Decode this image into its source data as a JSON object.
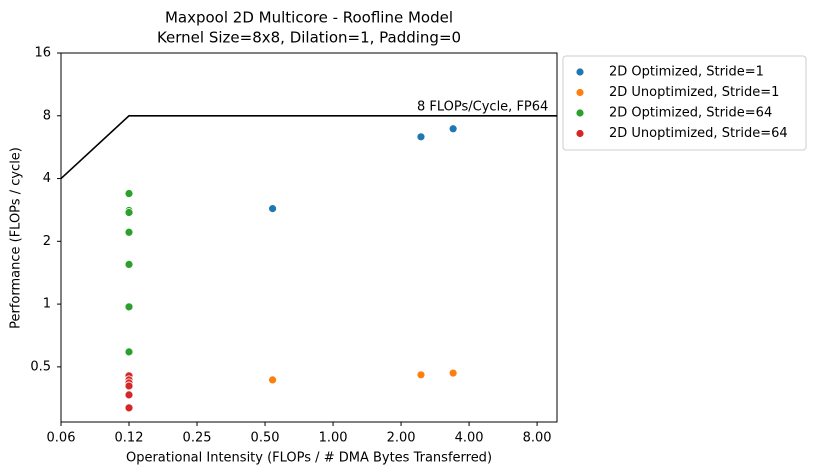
{
  "chart_data": {
    "type": "scatter",
    "title": "Maxpool 2D Multicore - Roofline Model",
    "subtitle": "Kernel Size=8x8, Dilation=1, Padding=0",
    "xlabel": "Operational Intensity (FLOPs / # DMA Bytes Transferred)",
    "ylabel": "Performance (FLOPs / cycle)",
    "xscale": "log2",
    "yscale": "log2",
    "xlim": [
      0.0625,
      9.8
    ],
    "ylim": [
      0.272,
      16
    ],
    "xticks": [
      {
        "value": 0.0625,
        "label": "0.06"
      },
      {
        "value": 0.125,
        "label": "0.12"
      },
      {
        "value": 0.25,
        "label": "0.25"
      },
      {
        "value": 0.5,
        "label": "0.50"
      },
      {
        "value": 1,
        "label": "1.00"
      },
      {
        "value": 2,
        "label": "2.00"
      },
      {
        "value": 4,
        "label": "4.00"
      },
      {
        "value": 8,
        "label": "8.00"
      }
    ],
    "yticks": [
      0.5,
      1,
      2,
      4,
      8,
      16
    ],
    "legend": "outside-upper-right",
    "roofline": {
      "label": "8 FLOPs/Cycle, FP64",
      "color": "#000000",
      "x": [
        0.0625,
        0.125,
        9.8
      ],
      "values": [
        4,
        8,
        8
      ]
    },
    "series": [
      {
        "name": "2D Optimized, Stride=1",
        "color": "#1f77b4",
        "x": [
          0.54,
          2.45,
          3.4
        ],
        "values": [
          2.87,
          6.34,
          6.93
        ]
      },
      {
        "name": "2D Unoptimized, Stride=1",
        "color": "#ff7f0e",
        "x": [
          0.54,
          2.45,
          3.4
        ],
        "values": [
          0.433,
          0.458,
          0.467
        ]
      },
      {
        "name": "2D Optimized, Stride=64",
        "color": "#2ca02c",
        "x": [
          0.125,
          0.125,
          0.125,
          0.125,
          0.125,
          0.125,
          0.125
        ],
        "values": [
          3.39,
          2.81,
          2.75,
          2.21,
          1.55,
          0.97,
          0.59
        ]
      },
      {
        "name": "2D Unoptimized, Stride=64",
        "color": "#d62728",
        "x": [
          0.125,
          0.125,
          0.125,
          0.125,
          0.125,
          0.125
        ],
        "values": [
          0.453,
          0.433,
          0.419,
          0.405,
          0.367,
          0.318
        ]
      }
    ]
  }
}
